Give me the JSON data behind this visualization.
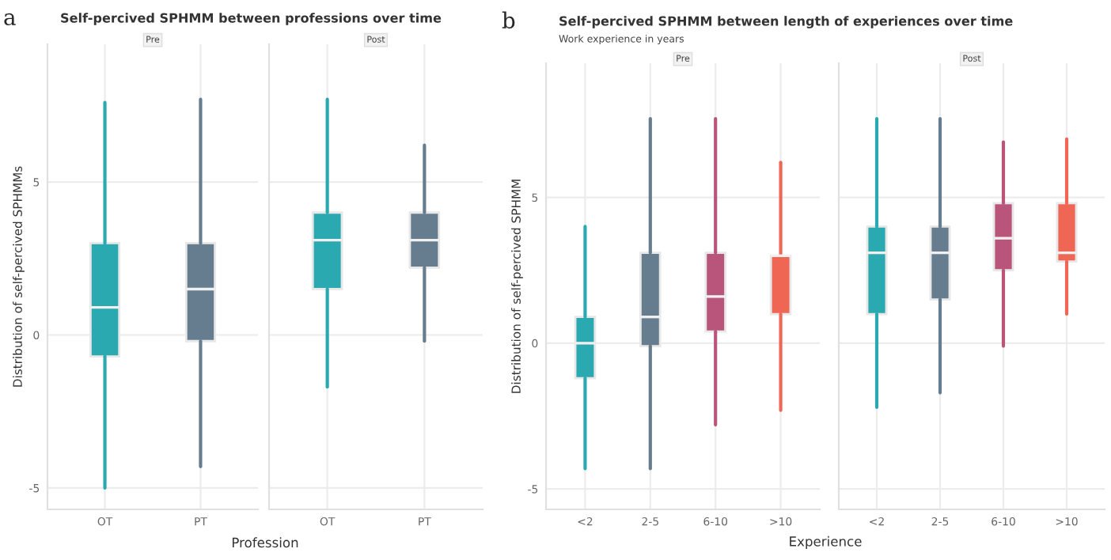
{
  "chart_data": [
    {
      "type": "box",
      "title": "Self-percived SPHMM between professions over time",
      "ylabel": "Distribution of self-percived SPHMMs",
      "xlabel": "Profession",
      "annotations": [
        "a",
        "Pre"
      ],
      "categories": [
        "OT",
        "PT"
      ],
      "colors": [
        "#2aa9b0",
        "#667c8f"
      ],
      "boxes": [
        {
          "low": -5.0,
          "q1": -0.7,
          "median": 0.9,
          "q3": 3.0,
          "high": 7.6
        },
        {
          "low": -4.3,
          "q1": -0.2,
          "median": 1.5,
          "q3": 3.0,
          "high": 7.7
        }
      ],
      "ylim": [
        -5.7,
        9.5
      ],
      "yticks": [
        -5,
        0,
        5
      ],
      "grid": true
    },
    {
      "type": "box",
      "annotations": [
        "Post"
      ],
      "categories": [
        "OT",
        "PT"
      ],
      "colors": [
        "#2aa9b0",
        "#667c8f"
      ],
      "boxes": [
        {
          "low": -1.7,
          "q1": 1.5,
          "median": 3.1,
          "q3": 4.0,
          "high": 7.7
        },
        {
          "low": -0.2,
          "q1": 2.2,
          "median": 3.1,
          "q3": 4.0,
          "high": 6.2
        }
      ],
      "ylim": [
        -5.7,
        9.5
      ],
      "yticks": [
        -5,
        0,
        5
      ],
      "grid": true,
      "tick_labels": "x"
    },
    {
      "type": "box",
      "title": "Self-percived SPHMM between length of experiences over time",
      "subtitle": "Work experience in years",
      "ylabel": "Distribution of self-percived SPHMM",
      "xlabel": "Experience",
      "annotations": [
        "b",
        "Pre"
      ],
      "categories": [
        "<2",
        "2-5",
        "6-10",
        ">10"
      ],
      "colors": [
        "#2aa9b0",
        "#667c8f",
        "#b9557a",
        "#ef6655"
      ],
      "boxes": [
        {
          "low": -4.3,
          "q1": -1.2,
          "median": 0.0,
          "q3": 0.9,
          "high": 4.0
        },
        {
          "low": -4.3,
          "q1": -0.1,
          "median": 0.9,
          "q3": 3.1,
          "high": 7.7
        },
        {
          "low": -2.8,
          "q1": 0.4,
          "median": 1.6,
          "q3": 3.1,
          "high": 7.7
        },
        {
          "low": -2.3,
          "q1": 1.0,
          "median": 3.0,
          "q3": 3.0,
          "high": 6.2
        }
      ],
      "ylim": [
        -5.7,
        9.6
      ],
      "yticks": [
        -5,
        0,
        5
      ],
      "grid": true
    },
    {
      "type": "box",
      "annotations": [
        "Post"
      ],
      "categories": [
        "<2",
        "2-5",
        "6-10",
        ">10"
      ],
      "colors": [
        "#2aa9b0",
        "#667c8f",
        "#b9557a",
        "#ef6655"
      ],
      "boxes": [
        {
          "low": -2.2,
          "q1": 1.0,
          "median": 3.1,
          "q3": 4.0,
          "high": 7.7
        },
        {
          "low": -1.7,
          "q1": 1.5,
          "median": 3.1,
          "q3": 4.0,
          "high": 7.7
        },
        {
          "low": -0.1,
          "q1": 2.5,
          "median": 3.6,
          "q3": 4.8,
          "high": 6.9
        },
        {
          "low": 1.0,
          "q1": 2.8,
          "median": 3.1,
          "q3": 4.8,
          "high": 7.0
        }
      ],
      "ylim": [
        -5.7,
        9.6
      ],
      "yticks": [
        -5,
        0,
        5
      ],
      "grid": true,
      "tick_labels": "x"
    }
  ]
}
